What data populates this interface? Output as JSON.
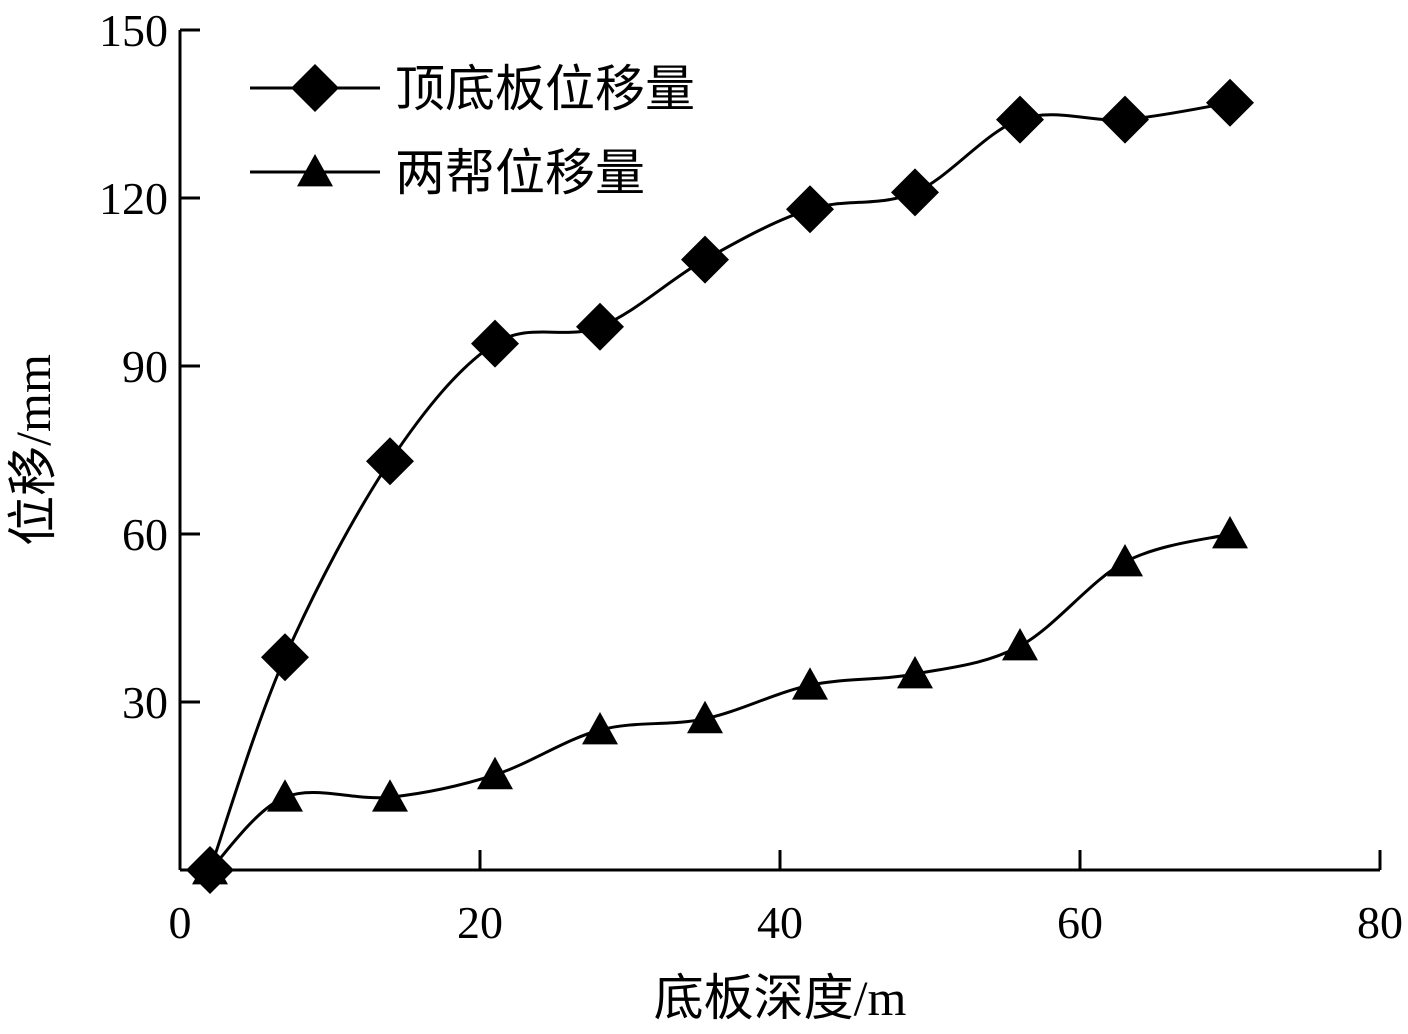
{
  "chart_data": {
    "type": "line",
    "xlabel": "底板深度/m",
    "ylabel": "位移/mm",
    "xlim": [
      0,
      80
    ],
    "ylim": [
      0,
      150
    ],
    "xticks": [
      0,
      20,
      40,
      60,
      80
    ],
    "yticks": [
      30,
      60,
      90,
      120,
      150
    ],
    "xtick_labels": [
      "0",
      "20",
      "40",
      "60",
      "80"
    ],
    "ytick_labels": [
      "30",
      "60",
      "90",
      "120",
      "150"
    ],
    "grid": false,
    "legend_position": "top-left",
    "series": [
      {
        "name": "顶底板位移量",
        "marker": "diamond",
        "x": [
          2,
          7,
          14,
          21,
          28,
          35,
          42,
          49,
          56,
          63,
          70
        ],
        "y": [
          0,
          38,
          73,
          94,
          97,
          109,
          118,
          121,
          134,
          134,
          137
        ]
      },
      {
        "name": "两帮位移量",
        "marker": "triangle",
        "x": [
          2,
          7,
          14,
          21,
          28,
          35,
          42,
          49,
          56,
          63,
          70
        ],
        "y": [
          0,
          13,
          13,
          17,
          25,
          27,
          33,
          35,
          40,
          55,
          60
        ]
      }
    ]
  }
}
